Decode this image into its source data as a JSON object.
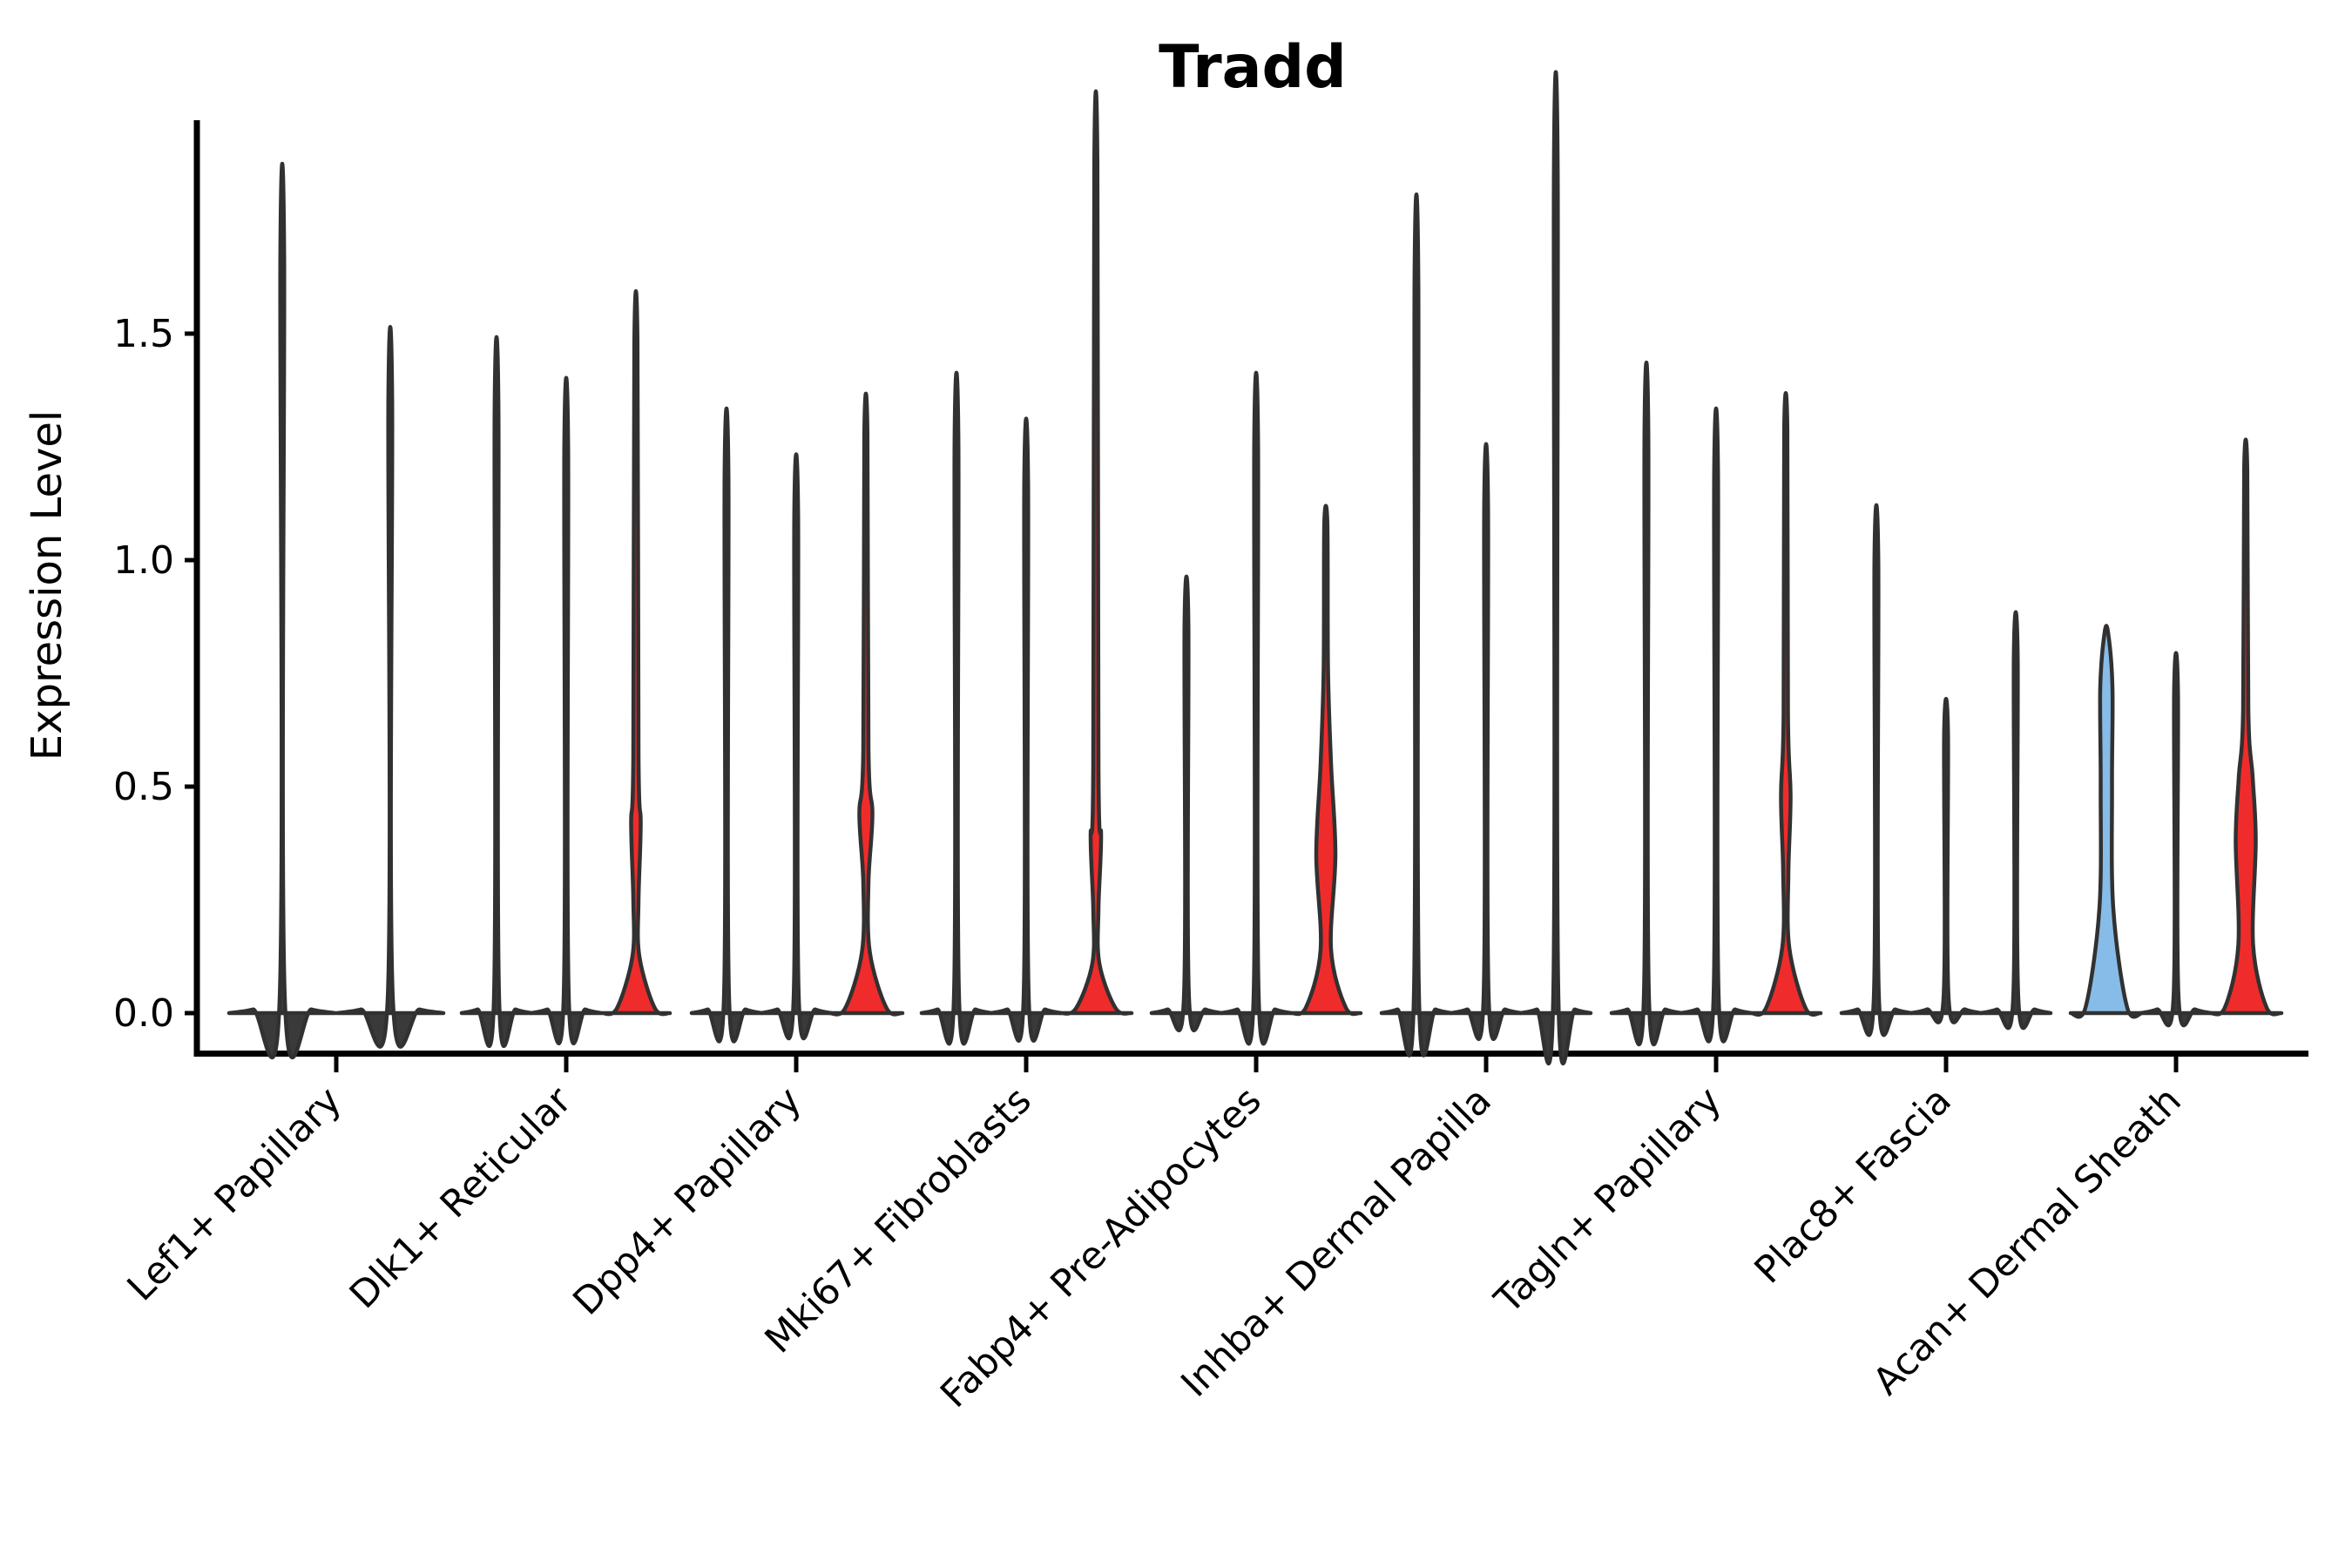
{
  "chart_data": {
    "type": "violin",
    "title": "Tradd",
    "ylabel": "Expression Level",
    "xlabel": "",
    "ylim": [
      -0.09,
      1.97
    ],
    "grid": false,
    "legend": "none",
    "yticks": [
      {
        "value": 0.0,
        "label": "0.0"
      },
      {
        "value": 0.5,
        "label": "0.5"
      },
      {
        "value": 1.0,
        "label": "1.0"
      },
      {
        "value": 1.5,
        "label": "1.5"
      }
    ],
    "colors": {
      "outline": "#313131",
      "dark": "#3A3A3A",
      "red": "#F02B2B",
      "blue": "#87BCE8"
    },
    "categories": [
      "Lef1+ Papillary",
      "Dlk1+ Reticular",
      "Dpp4+ Papillary",
      "Mki67+ Fibroblasts",
      "Fabp4+ Pre-Adipocytes",
      "Inhba+ Dermal Papilla",
      "Tagln+ Papillary",
      "Plac8+ Fascia",
      "Acan+ Dermal Sheath"
    ],
    "groups": [
      {
        "label": "Lef1+ Papillary",
        "violins": [
          {
            "max": 1.67,
            "color": "dark"
          },
          {
            "max": 1.35,
            "color": "dark"
          }
        ]
      },
      {
        "label": "Dlk1+ Reticular",
        "violins": [
          {
            "max": 1.33,
            "color": "dark"
          },
          {
            "max": 1.25,
            "color": "dark"
          },
          {
            "max": 1.48,
            "color": "red",
            "profile": [
              [
                39,
                0
              ],
              [
                22,
                0.01
              ],
              [
                4,
                0.125
              ],
              [
                3,
                0.25
              ],
              [
                5.5,
                0.42
              ],
              [
                3,
                0.57
              ],
              [
                1.8,
                1.48
              ]
            ]
          }
        ]
      },
      {
        "label": "Dpp4+ Papillary",
        "violins": [
          {
            "max": 1.19,
            "color": "dark"
          },
          {
            "max": 1.1,
            "color": "dark"
          },
          {
            "max": 1.28,
            "color": "red",
            "profile": [
              [
                42,
                0
              ],
              [
                24,
                0.01
              ],
              [
                4.5,
                0.135
              ],
              [
                3,
                0.29
              ],
              [
                7.5,
                0.44
              ],
              [
                3,
                0.58
              ],
              [
                1.8,
                1.28
              ]
            ]
          }
        ]
      },
      {
        "label": "Mki67+ Fibroblasts",
        "violins": [
          {
            "max": 1.26,
            "color": "dark"
          },
          {
            "max": 1.17,
            "color": "dark"
          },
          {
            "max": 1.87,
            "color": "red",
            "profile": [
              [
                41,
                0
              ],
              [
                23,
                0.01
              ],
              [
                4,
                0.11
              ],
              [
                3,
                0.23
              ],
              [
                6,
                0.39
              ],
              [
                3,
                0.55
              ],
              [
                1.8,
                1.87
              ]
            ]
          }
        ]
      },
      {
        "label": "Fabp4+ Pre-Adipocytes",
        "violins": [
          {
            "max": 0.86,
            "color": "dark"
          },
          {
            "max": 1.26,
            "color": "dark"
          },
          {
            "max": 1.08,
            "color": "red",
            "profile": [
              [
                40,
                0
              ],
              [
                23,
                0.012
              ],
              [
                6,
                0.14
              ],
              [
                11,
                0.35
              ],
              [
                6,
                0.55
              ],
              [
                2.5,
                0.76
              ],
              [
                1.8,
                1.08
              ]
            ]
          }
        ]
      },
      {
        "label": "Inhba+ Dermal Papilla",
        "violins": [
          {
            "max": 1.61,
            "color": "dark"
          },
          {
            "max": 1.12,
            "color": "dark"
          },
          {
            "max": 1.85,
            "color": "dark"
          }
        ]
      },
      {
        "label": "Tagln+ Papillary",
        "violins": [
          {
            "max": 1.28,
            "color": "dark"
          },
          {
            "max": 1.19,
            "color": "dark"
          },
          {
            "max": 1.29,
            "color": "red",
            "profile": [
              [
                40,
                0
              ],
              [
                23,
                0.01
              ],
              [
                4,
                0.145
              ],
              [
                3,
                0.31
              ],
              [
                5.5,
                0.48
              ],
              [
                2.5,
                0.66
              ],
              [
                1.8,
                1.29
              ]
            ]
          }
        ]
      },
      {
        "label": "Plac8+ Fascia",
        "violins": [
          {
            "max": 1.0,
            "color": "dark"
          },
          {
            "max": 0.62,
            "color": "dark"
          },
          {
            "max": 0.79,
            "color": "dark"
          }
        ]
      },
      {
        "label": "Acan+ Dermal Sheath",
        "violins": [
          {
            "max": 0.84,
            "color": "blue",
            "profile": [
              [
                41,
                0
              ],
              [
                24,
                0.012
              ],
              [
                8,
                0.23
              ],
              [
                6.5,
                0.5
              ],
              [
                7,
                0.72
              ],
              [
                2,
                0.84
              ]
            ]
          },
          {
            "max": 0.71,
            "color": "dark"
          },
          {
            "max": 1.2,
            "color": "red",
            "profile": [
              [
                41,
                0
              ],
              [
                24,
                0.012
              ],
              [
                8.5,
                0.15
              ],
              [
                11.5,
                0.38
              ],
              [
                8,
                0.52
              ],
              [
                3,
                0.67
              ],
              [
                1.8,
                1.2
              ]
            ]
          }
        ]
      }
    ]
  }
}
